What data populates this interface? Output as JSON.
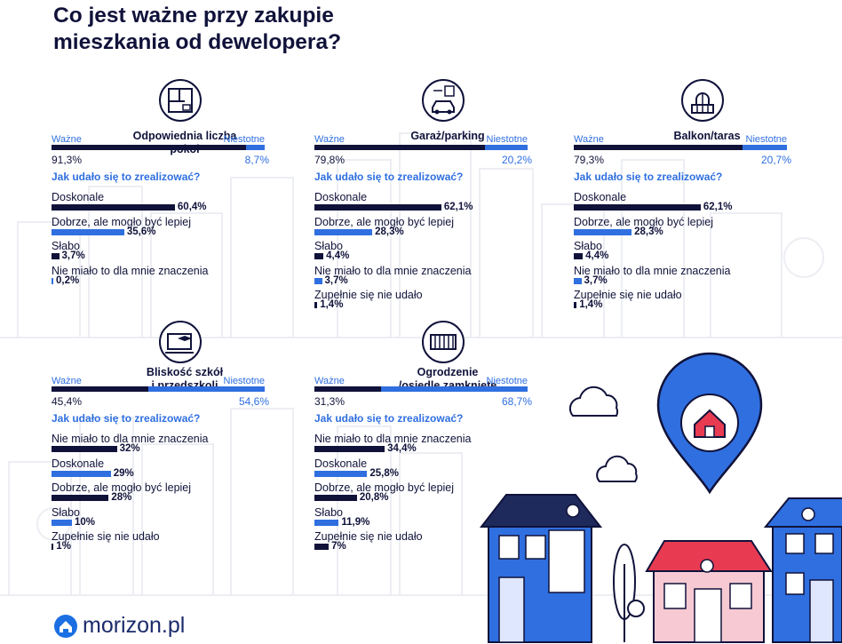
{
  "title_lines": [
    "Co jest ważne przy zakupie",
    "mieszkania od dewelopera?"
  ],
  "colors": {
    "dark": "#10123a",
    "blue": "#2f6fe0",
    "bg_city": "#eef0f4"
  },
  "logo": {
    "text": "morizon.pl",
    "icon": "house-circle-icon"
  },
  "chart_data": [
    {
      "type": "bar",
      "title": "Odpowiednia liczba pokoi",
      "icon": "floorplan-icon",
      "left_label": "Ważne",
      "right_label": "Niestotne",
      "important": 91.3,
      "not_important": 8.7,
      "important_text": "91,3%",
      "not_important_text": "8,7%",
      "question": "Jak udało się to zrealizować?",
      "categories": [
        "Doskonale",
        "Dobrze, ale mogło być lepiej",
        "Słabo",
        "Nie miało to dla mnie znaczenia"
      ],
      "values": [
        60.4,
        35.6,
        3.7,
        0.2
      ],
      "value_labels": [
        "60,4%",
        "35,6%",
        "3,7%",
        "0,2%"
      ],
      "bar_colors": [
        "dark",
        "blue",
        "dark",
        "blue"
      ]
    },
    {
      "type": "bar",
      "title": "Garaż/parking",
      "icon": "car-parking-icon",
      "left_label": "Ważne",
      "right_label": "Niestotne",
      "important": 79.8,
      "not_important": 20.2,
      "important_text": "79,8%",
      "not_important_text": "20,2%",
      "question": "Jak udało się to zrealizować?",
      "categories": [
        "Doskonale",
        "Dobrze, ale mogło być lepiej",
        "Słabo",
        "Nie miało to dla mnie znaczenia",
        "Zupełnie się nie udało"
      ],
      "values": [
        62.1,
        28.3,
        4.4,
        3.7,
        1.4
      ],
      "value_labels": [
        "62,1%",
        "28,3%",
        "4,4%",
        "3,7%",
        "1,4%"
      ],
      "bar_colors": [
        "dark",
        "blue",
        "dark",
        "blue",
        "dark"
      ]
    },
    {
      "type": "bar",
      "title": "Balkon/taras",
      "icon": "balcony-icon",
      "left_label": "Ważne",
      "right_label": "Niestotne",
      "important": 79.3,
      "not_important": 20.7,
      "important_text": "79,3%",
      "not_important_text": "20,7%",
      "question": "Jak udało się to zrealizować?",
      "categories": [
        "Doskonale",
        "Dobrze, ale mogło być lepiej",
        "Słabo",
        "Nie miało to dla mnie znaczenia",
        "Zupełnie się nie udało"
      ],
      "values": [
        62.1,
        28.3,
        4.4,
        3.7,
        1.4
      ],
      "value_labels": [
        "62,1%",
        "28,3%",
        "4,4%",
        "3,7%",
        "1,4%"
      ],
      "bar_colors": [
        "dark",
        "blue",
        "dark",
        "blue",
        "dark"
      ]
    },
    {
      "type": "bar",
      "title": "Bliskość szkół\ni przedszkoli",
      "icon": "school-computer-icon",
      "left_label": "Ważne",
      "right_label": "Niestotne",
      "important": 45.4,
      "not_important": 54.6,
      "important_text": "45,4%",
      "not_important_text": "54,6%",
      "question": "Jak udało się to zrealizować?",
      "categories": [
        "Nie miało to dla mnie znaczenia",
        "Doskonale",
        "Dobrze, ale mogło być lepiej",
        "Słabo",
        "Zupełnie się nie udało"
      ],
      "values": [
        32,
        29,
        28,
        10,
        1
      ],
      "value_labels": [
        "32%",
        "29%",
        "28%",
        "10%",
        "1%"
      ],
      "bar_colors": [
        "dark",
        "blue",
        "dark",
        "blue",
        "dark"
      ]
    },
    {
      "type": "bar",
      "title": "Ogrodzenie\n/osiedle zamknięte",
      "icon": "fence-icon",
      "left_label": "Ważne",
      "right_label": "Niestotne",
      "important": 31.3,
      "not_important": 68.7,
      "important_text": "31,3%",
      "not_important_text": "68,7%",
      "question": "Jak udało się to zrealizować?",
      "categories": [
        "Nie miało to dla mnie znaczenia",
        "Doskonale",
        "Dobrze, ale mogło być lepiej",
        "Słabo",
        "Zupełnie się nie udało"
      ],
      "values": [
        34.4,
        25.8,
        20.8,
        11.9,
        7
      ],
      "value_labels": [
        "34,4%",
        "25,8%",
        "20,8%",
        "11,9%",
        "7%"
      ],
      "bar_colors": [
        "dark",
        "blue",
        "dark",
        "blue",
        "dark"
      ]
    }
  ]
}
